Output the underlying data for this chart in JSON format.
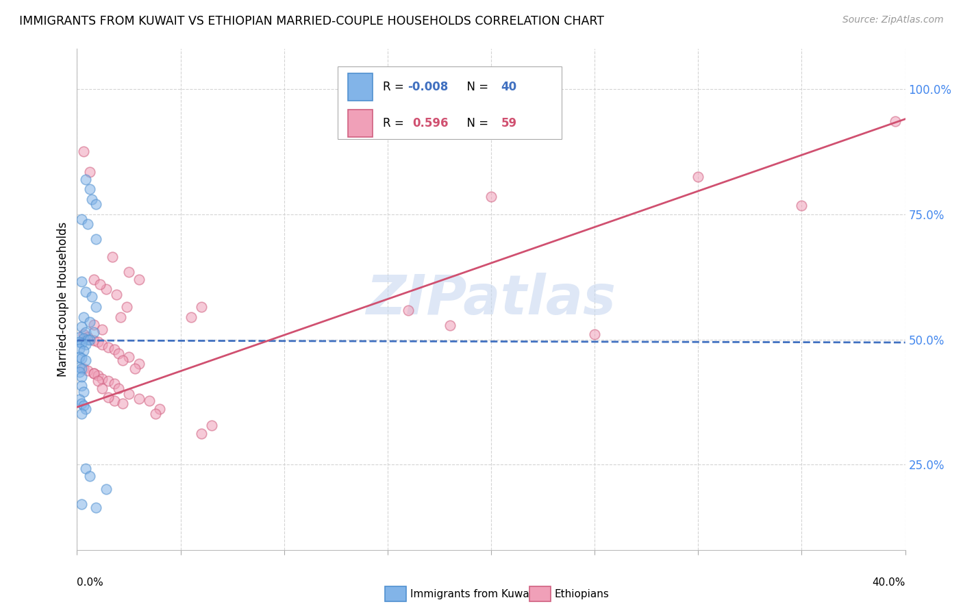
{
  "title": "IMMIGRANTS FROM KUWAIT VS ETHIOPIAN MARRIED-COUPLE HOUSEHOLDS CORRELATION CHART",
  "source": "Source: ZipAtlas.com",
  "ylabel": "Married-couple Households",
  "ytick_values": [
    0.25,
    0.5,
    0.75,
    1.0
  ],
  "ytick_labels": [
    "25.0%",
    "50.0%",
    "75.0%",
    "100.0%"
  ],
  "xlim": [
    0.0,
    0.4
  ],
  "ylim": [
    0.08,
    1.08
  ],
  "kuwait_points": [
    [
      0.004,
      0.82
    ],
    [
      0.006,
      0.8
    ],
    [
      0.007,
      0.78
    ],
    [
      0.009,
      0.77
    ],
    [
      0.002,
      0.74
    ],
    [
      0.005,
      0.73
    ],
    [
      0.009,
      0.7
    ],
    [
      0.002,
      0.615
    ],
    [
      0.004,
      0.595
    ],
    [
      0.007,
      0.585
    ],
    [
      0.009,
      0.565
    ],
    [
      0.003,
      0.545
    ],
    [
      0.006,
      0.535
    ],
    [
      0.002,
      0.525
    ],
    [
      0.004,
      0.515
    ],
    [
      0.008,
      0.515
    ],
    [
      0.001,
      0.505
    ],
    [
      0.003,
      0.502
    ],
    [
      0.005,
      0.5
    ],
    [
      0.006,
      0.5
    ],
    [
      0.001,
      0.495
    ],
    [
      0.002,
      0.492
    ],
    [
      0.004,
      0.49
    ],
    [
      0.001,
      0.482
    ],
    [
      0.003,
      0.478
    ],
    [
      0.001,
      0.465
    ],
    [
      0.002,
      0.462
    ],
    [
      0.004,
      0.458
    ],
    [
      0.001,
      0.445
    ],
    [
      0.002,
      0.442
    ],
    [
      0.001,
      0.435
    ],
    [
      0.002,
      0.425
    ],
    [
      0.002,
      0.408
    ],
    [
      0.003,
      0.395
    ],
    [
      0.001,
      0.38
    ],
    [
      0.002,
      0.372
    ],
    [
      0.003,
      0.368
    ],
    [
      0.004,
      0.362
    ],
    [
      0.002,
      0.352
    ],
    [
      0.004,
      0.242
    ],
    [
      0.006,
      0.228
    ],
    [
      0.014,
      0.202
    ],
    [
      0.002,
      0.172
    ],
    [
      0.009,
      0.165
    ]
  ],
  "ethiopian_points": [
    [
      0.003,
      0.875
    ],
    [
      0.006,
      0.835
    ],
    [
      0.017,
      0.665
    ],
    [
      0.025,
      0.635
    ],
    [
      0.03,
      0.62
    ],
    [
      0.014,
      0.6
    ],
    [
      0.019,
      0.59
    ],
    [
      0.008,
      0.62
    ],
    [
      0.011,
      0.61
    ],
    [
      0.024,
      0.565
    ],
    [
      0.021,
      0.545
    ],
    [
      0.06,
      0.565
    ],
    [
      0.055,
      0.545
    ],
    [
      0.008,
      0.53
    ],
    [
      0.012,
      0.52
    ],
    [
      0.003,
      0.51
    ],
    [
      0.005,
      0.505
    ],
    [
      0.008,
      0.498
    ],
    [
      0.01,
      0.495
    ],
    [
      0.012,
      0.49
    ],
    [
      0.015,
      0.485
    ],
    [
      0.018,
      0.48
    ],
    [
      0.02,
      0.472
    ],
    [
      0.025,
      0.465
    ],
    [
      0.022,
      0.458
    ],
    [
      0.03,
      0.452
    ],
    [
      0.028,
      0.442
    ],
    [
      0.003,
      0.442
    ],
    [
      0.005,
      0.438
    ],
    [
      0.008,
      0.432
    ],
    [
      0.01,
      0.428
    ],
    [
      0.012,
      0.422
    ],
    [
      0.015,
      0.418
    ],
    [
      0.018,
      0.412
    ],
    [
      0.02,
      0.402
    ],
    [
      0.025,
      0.392
    ],
    [
      0.03,
      0.382
    ],
    [
      0.035,
      0.378
    ],
    [
      0.018,
      0.378
    ],
    [
      0.022,
      0.372
    ],
    [
      0.04,
      0.362
    ],
    [
      0.038,
      0.352
    ],
    [
      0.008,
      0.432
    ],
    [
      0.01,
      0.418
    ],
    [
      0.012,
      0.402
    ],
    [
      0.015,
      0.385
    ],
    [
      0.065,
      0.328
    ],
    [
      0.06,
      0.312
    ],
    [
      0.2,
      0.785
    ],
    [
      0.3,
      0.825
    ],
    [
      0.35,
      0.768
    ],
    [
      0.16,
      0.558
    ],
    [
      0.18,
      0.528
    ],
    [
      0.25,
      0.51
    ],
    [
      0.395,
      0.935
    ]
  ],
  "kuwait_line_x": [
    0.0,
    0.4
  ],
  "kuwait_line_y": [
    0.498,
    0.494
  ],
  "ethiopian_line_x": [
    0.0,
    0.4
  ],
  "ethiopian_line_y": [
    0.365,
    0.94
  ],
  "blue_color": "#82b4e8",
  "blue_edge": "#5090d0",
  "pink_color": "#f0a0b8",
  "pink_edge": "#d06080",
  "kuwait_line_color": "#4070c0",
  "ethiopian_line_color": "#d05070",
  "background_color": "#ffffff",
  "grid_color": "#d0d0d0",
  "watermark_color": "#c8d8f0",
  "ytick_color": "#4488ee",
  "xtick_labels_color": "#000000"
}
